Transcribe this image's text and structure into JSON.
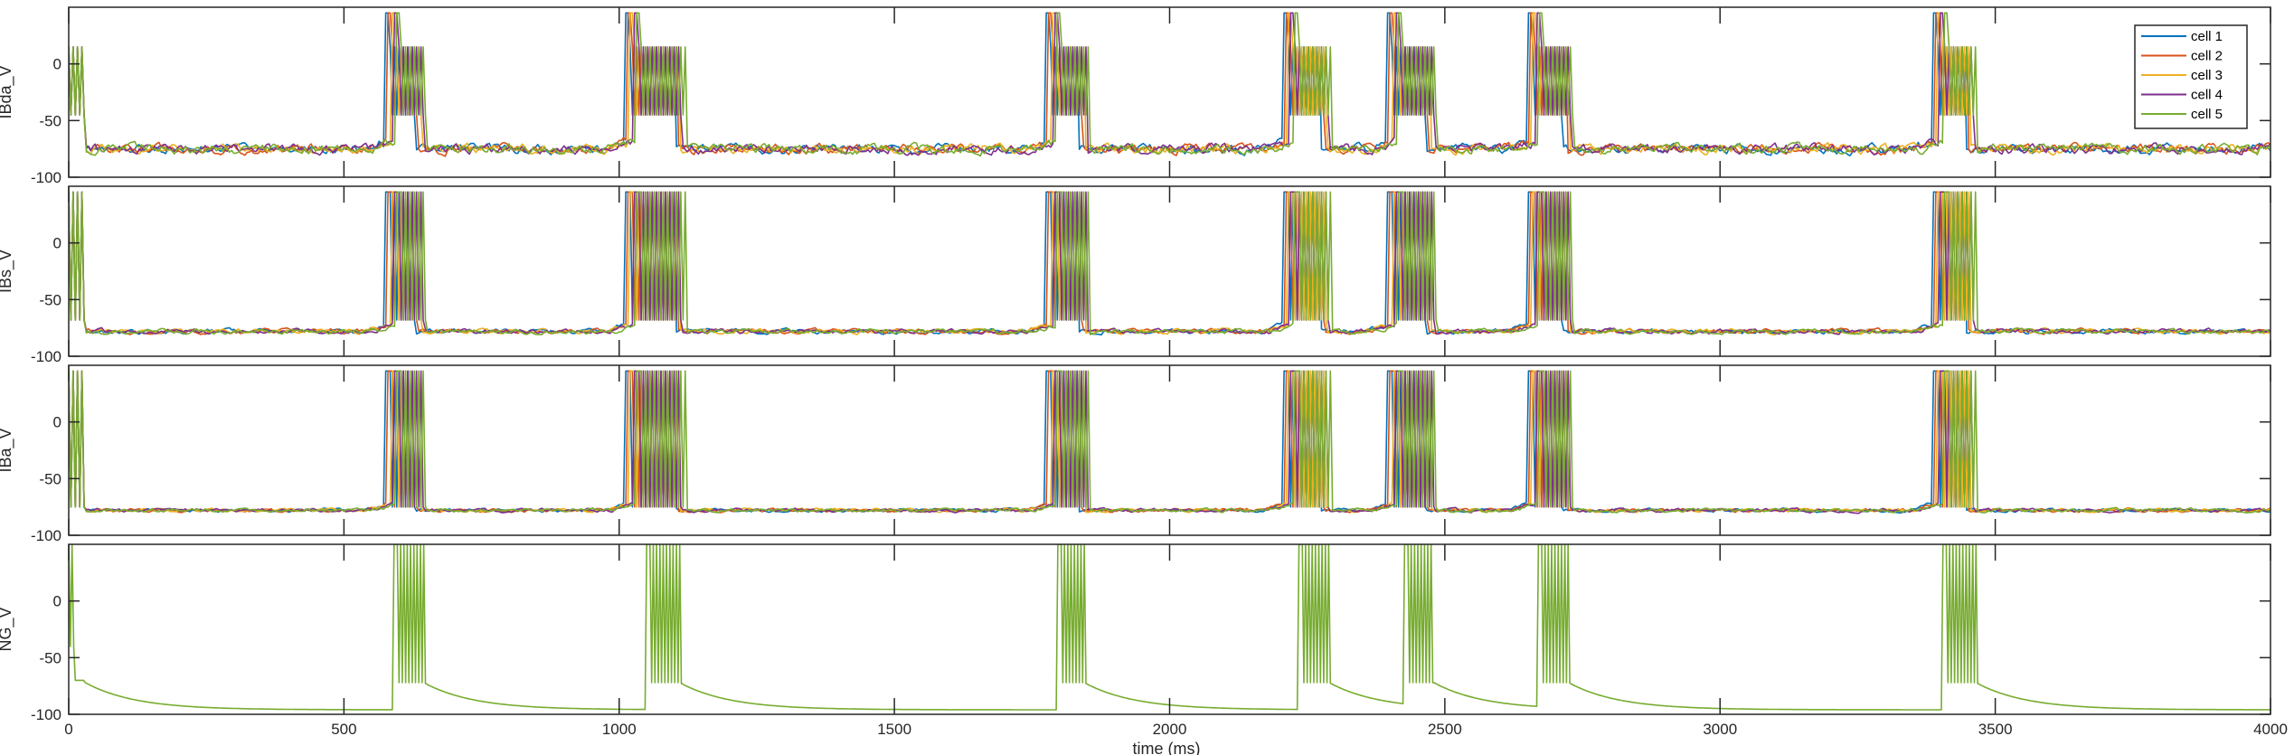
{
  "chart_data": {
    "type": "line",
    "xlabel": "time (ms)",
    "xlim": [
      0,
      4000
    ],
    "xticks": [
      0,
      500,
      1000,
      1500,
      2000,
      2500,
      3000,
      3500,
      4000
    ],
    "xtick_labels": [
      "0",
      "500",
      "1000",
      "1500",
      "2000",
      "2500",
      "3000",
      "3500",
      "4000"
    ],
    "grid": false,
    "legend": {
      "placement": "top-right",
      "entries": [
        "cell 1",
        "cell 2",
        "cell 3",
        "cell 4",
        "cell 5"
      ]
    },
    "series_colors": [
      "#0072BD",
      "#D95319",
      "#EDB120",
      "#7E2F8E",
      "#77AC30"
    ],
    "panels": [
      {
        "ylabel": "IBda_V",
        "ylim": [
          -100,
          50
        ],
        "yticks": [
          -100,
          -50,
          0
        ],
        "ytick_labels": [
          "-100",
          "-50",
          "0"
        ],
        "n_cells": 5,
        "baseline_mV": -75,
        "noise_mV": 4,
        "burst_low_mV": -45,
        "burst_high_mV": 15,
        "peak_mV": 45,
        "bursts": [
          [
            585,
            640
          ],
          [
            1020,
            1110
          ],
          [
            1785,
            1845
          ],
          [
            2215,
            2285
          ],
          [
            2405,
            2475
          ],
          [
            2660,
            2725
          ],
          [
            3395,
            3455
          ]
        ]
      },
      {
        "ylabel": "IBs_V",
        "ylim": [
          -100,
          50
        ],
        "yticks": [
          -100,
          -50,
          0
        ],
        "ytick_labels": [
          "-100",
          "-50",
          "0"
        ],
        "n_cells": 5,
        "baseline_mV": -78,
        "noise_mV": 2,
        "burst_low_mV": -68,
        "burst_high_mV": 45,
        "peak_mV": 45,
        "bursts": [
          [
            585,
            640
          ],
          [
            1020,
            1110
          ],
          [
            1785,
            1845
          ],
          [
            2215,
            2285
          ],
          [
            2405,
            2475
          ],
          [
            2660,
            2725
          ],
          [
            3395,
            3455
          ]
        ]
      },
      {
        "ylabel": "IBa_V",
        "ylim": [
          -100,
          50
        ],
        "yticks": [
          -100,
          -50,
          0
        ],
        "ytick_labels": [
          "-100",
          "-50",
          "0"
        ],
        "n_cells": 5,
        "baseline_mV": -78,
        "noise_mV": 1.5,
        "burst_low_mV": -75,
        "burst_high_mV": 45,
        "peak_mV": 45,
        "bursts": [
          [
            585,
            640
          ],
          [
            1020,
            1110
          ],
          [
            1785,
            1845
          ],
          [
            2215,
            2285
          ],
          [
            2405,
            2475
          ],
          [
            2660,
            2725
          ],
          [
            3395,
            3455
          ]
        ]
      },
      {
        "ylabel": "NG_V",
        "ylim": [
          -100,
          50
        ],
        "yticks": [
          -100,
          -50,
          0
        ],
        "ytick_labels": [
          "-100",
          "-50",
          "0"
        ],
        "n_cells": 1,
        "baseline_mV": -96,
        "noise_mV": 0,
        "burst_low_mV": -72,
        "burst_high_mV": 50,
        "peak_mV": 50,
        "bursts": [
          [
            590,
            645
          ],
          [
            1050,
            1110
          ],
          [
            1795,
            1845
          ],
          [
            2235,
            2290
          ],
          [
            2425,
            2480
          ],
          [
            2670,
            2725
          ],
          [
            3405,
            3465
          ]
        ]
      }
    ]
  }
}
